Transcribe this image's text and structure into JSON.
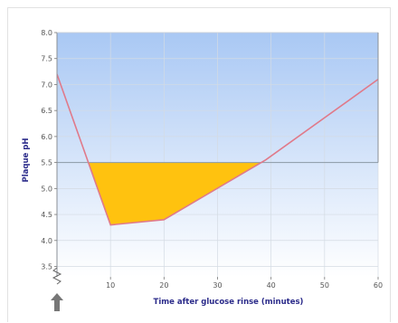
{
  "colors": {
    "sky_top": "#a9c8f4",
    "sky_bottom": "#ffffff",
    "curve": "#e07a8a",
    "acid_fill": "#ffc20f",
    "critical_line": "#8a9aa6",
    "axis_title": "#2b2b8a",
    "arrow": "#777777"
  },
  "icons": {
    "rinse_marker": "up-arrow-icon",
    "axis_break": "zigzag-break-icon"
  },
  "chart_data": {
    "type": "area",
    "title": "",
    "xlabel": "Time after glucose rinse (minutes)",
    "ylabel": "Plaque pH",
    "xlim": [
      0,
      60
    ],
    "ylim": [
      3.3,
      8.0
    ],
    "xticks": [
      10,
      20,
      30,
      40,
      50,
      60
    ],
    "yticks": [
      3.5,
      4.0,
      4.5,
      5.0,
      5.5,
      6.0,
      6.5,
      7.0,
      7.5,
      8.0
    ],
    "ytick_labels": [
      "3.5",
      "4.0",
      "4.5",
      "5.0",
      "5.5",
      "6.0",
      "6.5",
      "7.0",
      "7.5",
      "8.0"
    ],
    "y_axis_break": true,
    "grid": true,
    "critical_ph": 5.5,
    "series": [
      {
        "x": [
          0,
          10,
          20,
          39,
          60
        ],
        "y": [
          7.2,
          4.3,
          4.4,
          5.55,
          7.1
        ]
      }
    ],
    "shaded_region": "below critical pH 5.5, above curve"
  }
}
